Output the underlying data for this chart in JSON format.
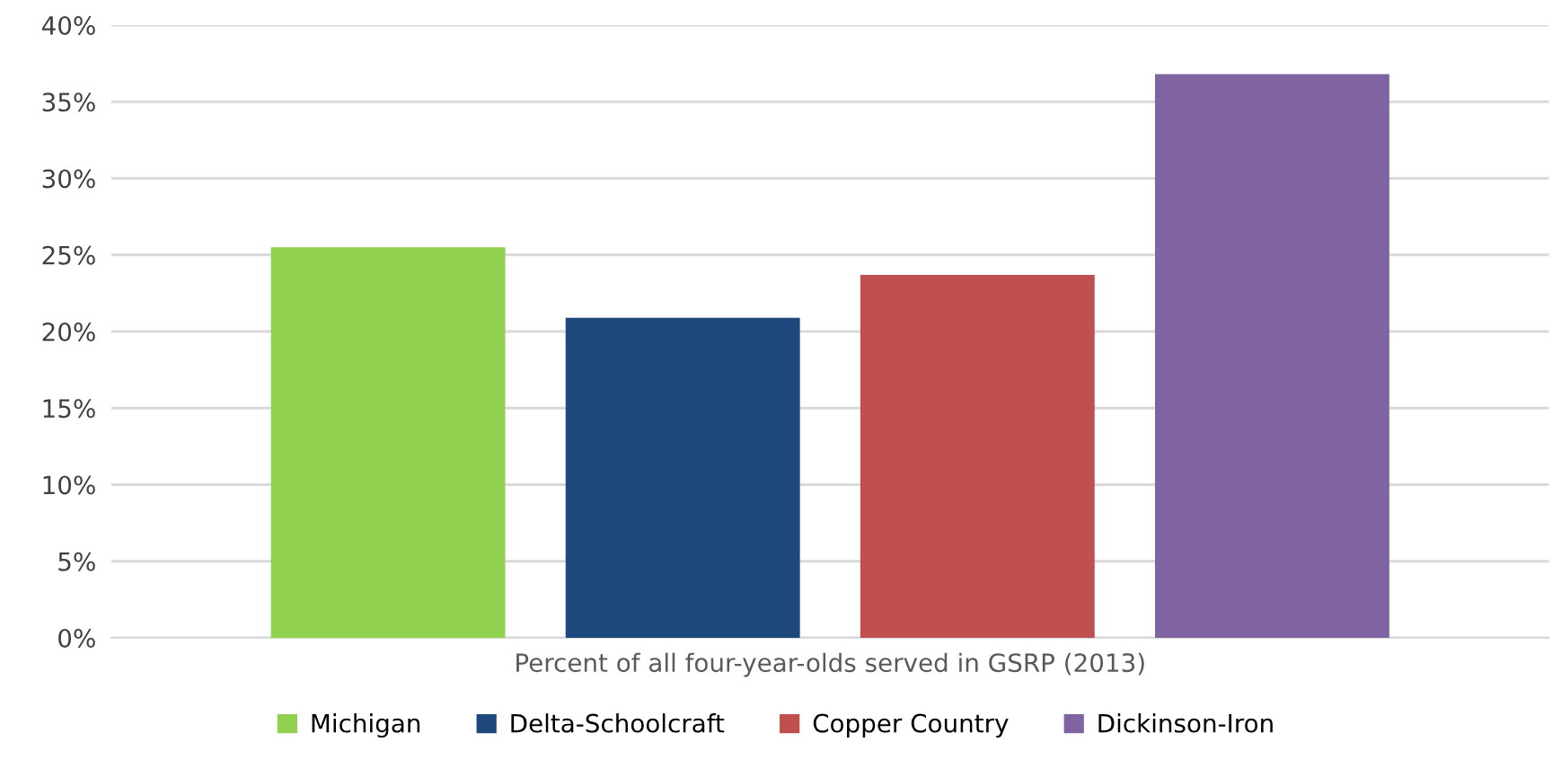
{
  "chart_data": {
    "type": "bar",
    "xlabel": null,
    "categories": [
      "Percent of all four-year-olds served in GSRP (2013)"
    ],
    "series": [
      {
        "name": "Michigan",
        "color": "#92d050",
        "values": [
          25.5
        ]
      },
      {
        "name": "Delta-Schoolcraft",
        "color": "#1f497d",
        "values": [
          20.9
        ]
      },
      {
        "name": "Copper Country",
        "color": "#c0504d",
        "values": [
          23.7
        ]
      },
      {
        "name": "Dickinson-Iron",
        "color": "#8064a2",
        "values": [
          36.8
        ]
      }
    ],
    "ylim": [
      0,
      40
    ],
    "yticks": [
      {
        "value": 0,
        "label": "0%"
      },
      {
        "value": 5,
        "label": "5%"
      },
      {
        "value": 10,
        "label": "10%"
      },
      {
        "value": 15,
        "label": "15%"
      },
      {
        "value": 20,
        "label": "20%"
      },
      {
        "value": 25,
        "label": "25%"
      },
      {
        "value": 30,
        "label": "30%"
      },
      {
        "value": 35,
        "label": "35%"
      },
      {
        "value": 40,
        "label": "40%"
      }
    ],
    "grid": "y",
    "legend": "bottom"
  }
}
